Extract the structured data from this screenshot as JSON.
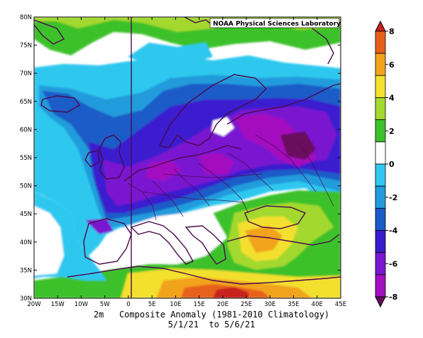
{
  "credit": "NOAA Physical Sciences Laboratory",
  "caption": {
    "line1": "2m   Composite Anomaly (1981-2010 Climatology)",
    "line2": "5/1/21  to 5/6/21"
  },
  "lon_ticks": [
    "20W",
    "15W",
    "10W",
    "5W",
    "0",
    "5E",
    "10E",
    "15E",
    "20E",
    "25E",
    "30E",
    "35E",
    "40E",
    "45E"
  ],
  "lat_ticks": [
    "80N",
    "75N",
    "70N",
    "65N",
    "60N",
    "55N",
    "50N",
    "45N",
    "40N",
    "35N",
    "30N"
  ],
  "colorbar": {
    "labels": [
      "8",
      "6",
      "4",
      "2",
      "0",
      "-2",
      "-4",
      "-6",
      "-8"
    ],
    "colors": [
      "#c8201c",
      "#e7601a",
      "#f2a31d",
      "#f3e02f",
      "#a3d92f",
      "#3cc12b",
      "#ffffff",
      "#2fc8ef",
      "#229bdc",
      "#1a5bc8",
      "#3a1ccf",
      "#7a16d0",
      "#a40fbf",
      "#6a0a5e"
    ]
  },
  "colors": {
    "ocean_bg": "#ffffff",
    "coast": "#4a0a4a"
  }
}
